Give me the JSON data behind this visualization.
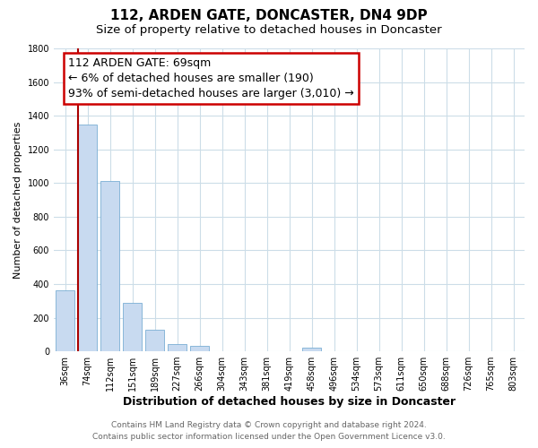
{
  "title": "112, ARDEN GATE, DONCASTER, DN4 9DP",
  "subtitle": "Size of property relative to detached houses in Doncaster",
  "xlabel": "Distribution of detached houses by size in Doncaster",
  "ylabel": "Number of detached properties",
  "bar_labels": [
    "36sqm",
    "74sqm",
    "112sqm",
    "151sqm",
    "189sqm",
    "227sqm",
    "266sqm",
    "304sqm",
    "343sqm",
    "381sqm",
    "419sqm",
    "458sqm",
    "496sqm",
    "534sqm",
    "573sqm",
    "611sqm",
    "650sqm",
    "688sqm",
    "726sqm",
    "765sqm",
    "803sqm"
  ],
  "bar_values": [
    360,
    1350,
    1010,
    290,
    130,
    45,
    35,
    0,
    0,
    0,
    0,
    20,
    0,
    0,
    0,
    0,
    0,
    0,
    0,
    0,
    0
  ],
  "highlight_index": 2,
  "bar_color": "#c8daf0",
  "bar_edge_color": "#7aaed4",
  "marker_line_color": "#aa0000",
  "ylim": [
    0,
    1800
  ],
  "yticks": [
    0,
    200,
    400,
    600,
    800,
    1000,
    1200,
    1400,
    1600,
    1800
  ],
  "annotation_box_text": "112 ARDEN GATE: 69sqm\n← 6% of detached houses are smaller (190)\n93% of semi-detached houses are larger (3,010) →",
  "box_color": "#ffffff",
  "box_edge_color": "#cc0000",
  "footer_line1": "Contains HM Land Registry data © Crown copyright and database right 2024.",
  "footer_line2": "Contains public sector information licensed under the Open Government Licence v3.0.",
  "background_color": "#ffffff",
  "grid_color": "#ccdde8",
  "title_fontsize": 11,
  "subtitle_fontsize": 9.5,
  "xlabel_fontsize": 9,
  "ylabel_fontsize": 8,
  "tick_fontsize": 7,
  "annotation_fontsize": 9,
  "footer_fontsize": 6.5
}
